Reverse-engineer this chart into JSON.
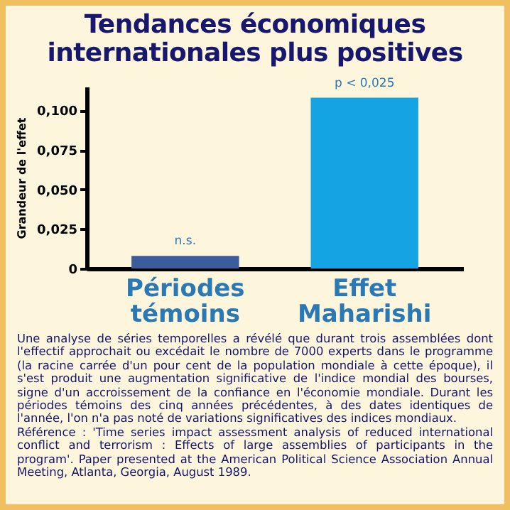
{
  "chart_data": {
    "type": "bar",
    "title": "Tendances économiques internationales plus positives",
    "ylabel": "Grandeur de l'effet",
    "categories": [
      "Périodes témoins",
      "Effet Maharishi"
    ],
    "values": [
      0.008,
      0.108
    ],
    "colors": [
      "#3d5c9c",
      "#14a4e4"
    ],
    "value_labels": [
      "n.s.",
      "p < 0,025"
    ],
    "ylim": [
      0,
      0.115
    ],
    "yticks": [
      {
        "value": 0,
        "label": "0"
      },
      {
        "value": 0.025,
        "label": "0,025"
      },
      {
        "value": 0.05,
        "label": "0,050"
      },
      {
        "value": 0.075,
        "label": "0,075"
      },
      {
        "value": 0.1,
        "label": "0,100"
      }
    ],
    "grid": false,
    "annotations": [
      "Une analyse de séries temporelles a révélé que durant trois assemblées dont l'effectif approchait ou excédait le nombre de 7000 experts dans le programme (la racine carrée d'un pour cent de la population mondiale à cette époque), il s'est produit une augmentation significative de l'indice mondial des bourses, signe d'un accroissement de la confiance en l'économie mondiale. Durant les périodes témoins des cinq années précédentes, à des dates identiques de l'année, l'on n'a pas noté de variations significatives des indices mondiaux.",
      "Référence : 'Time series impact assessment analysis of reduced international conflict and terrorism : Effects of large assemblies of participants in the program'. Paper presented at the American Political Science Association Annual Meeting, Atlanta, Georgia, August 1989."
    ]
  }
}
